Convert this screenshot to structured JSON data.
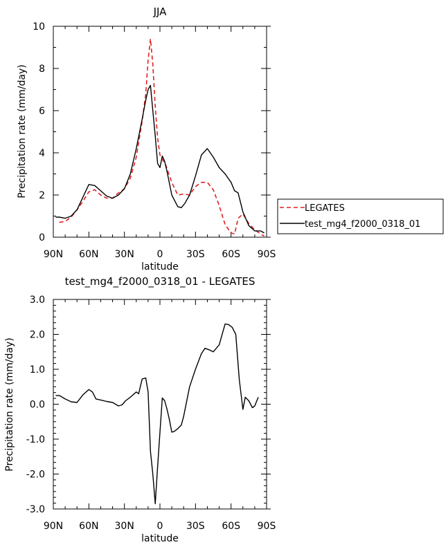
{
  "chart_data": [
    {
      "type": "line",
      "title": "JJA",
      "xlabel": "latitude",
      "ylabel": "Precipitation rate (mm/day)",
      "xlim": [
        90,
        -90
      ],
      "ylim": [
        0,
        10
      ],
      "xticks": [
        90,
        60,
        30,
        0,
        -30,
        -60,
        -90
      ],
      "xtick_labels": [
        "90N",
        "60N",
        "30N",
        "0",
        "30S",
        "60S",
        "90S"
      ],
      "yticks": [
        0,
        2,
        4,
        6,
        8,
        10
      ],
      "ytick_labels": [
        "0",
        "2",
        "4",
        "6",
        "8",
        "10"
      ],
      "legend": "outside-right",
      "series": [
        {
          "name": "LEGATES",
          "color": "#e02020",
          "dash": "dashed",
          "x": [
            85,
            80,
            75,
            70,
            65,
            60,
            55,
            50,
            45,
            40,
            35,
            30,
            25,
            20,
            15,
            12,
            10,
            8,
            6,
            4,
            2,
            0,
            -2,
            -5,
            -10,
            -15,
            -20,
            -25,
            -30,
            -35,
            -40,
            -45,
            -50,
            -55,
            -60,
            -63,
            -66,
            -70,
            -75,
            -80,
            -85,
            -88
          ],
          "y": [
            0.7,
            0.75,
            0.95,
            1.3,
            1.7,
            2.15,
            2.25,
            2.0,
            1.85,
            1.85,
            2.1,
            2.3,
            2.8,
            3.8,
            5.5,
            6.8,
            8.4,
            9.4,
            8.2,
            6.2,
            4.7,
            3.9,
            3.7,
            3.4,
            2.6,
            2.0,
            2.05,
            2.0,
            2.4,
            2.6,
            2.6,
            2.25,
            1.5,
            0.6,
            0.2,
            0.15,
            0.9,
            1.1,
            0.65,
            0.35,
            0.15,
            0.05
          ]
        },
        {
          "name": "test_mg4_f2000_0318_01",
          "color": "#000000",
          "dash": "solid",
          "x": [
            88,
            85,
            80,
            75,
            70,
            65,
            60,
            55,
            50,
            45,
            40,
            35,
            30,
            25,
            20,
            15,
            12,
            10,
            8,
            6,
            4,
            2,
            0,
            -2,
            -4,
            -6,
            -10,
            -15,
            -18,
            -21,
            -25,
            -30,
            -35,
            -40,
            -45,
            -50,
            -55,
            -60,
            -63,
            -66,
            -70,
            -75,
            -80,
            -85,
            -88
          ],
          "y": [
            0.95,
            0.95,
            0.9,
            1.0,
            1.3,
            1.9,
            2.5,
            2.45,
            2.2,
            1.95,
            1.85,
            2.0,
            2.3,
            3.0,
            4.2,
            5.6,
            6.5,
            7.0,
            7.2,
            6.0,
            4.8,
            3.5,
            3.3,
            3.85,
            3.6,
            3.1,
            2.0,
            1.45,
            1.4,
            1.6,
            2.0,
            2.9,
            3.9,
            4.2,
            3.8,
            3.3,
            3.0,
            2.6,
            2.2,
            2.1,
            1.2,
            0.55,
            0.3,
            0.3,
            0.2
          ]
        }
      ]
    },
    {
      "type": "line",
      "title": "test_mg4_f2000_0318_01 - LEGATES",
      "xlabel": "latitude",
      "ylabel": "Precipitation rate (mm/day)",
      "xlim": [
        90,
        -90
      ],
      "ylim": [
        -3,
        3
      ],
      "xticks": [
        90,
        60,
        30,
        0,
        -30,
        -60,
        -90
      ],
      "xtick_labels": [
        "90N",
        "60N",
        "30N",
        "0",
        "30S",
        "60S",
        "90S"
      ],
      "yticks": [
        -3,
        -2,
        -1,
        0,
        1,
        2,
        3
      ],
      "ytick_labels": [
        "-3.0",
        "-2.0",
        "-1.0",
        "0.0",
        "1.0",
        "2.0",
        "3.0"
      ],
      "series": [
        {
          "color": "#000000",
          "dash": "solid",
          "x": [
            88,
            85,
            80,
            75,
            70,
            65,
            60,
            57,
            54,
            50,
            45,
            40,
            35,
            32,
            29,
            25,
            20,
            18,
            15,
            12,
            10,
            8,
            6,
            4,
            2,
            0,
            -2,
            -4,
            -6,
            -8,
            -10,
            -12,
            -15,
            -18,
            -20,
            -25,
            -30,
            -35,
            -38,
            -42,
            -45,
            -50,
            -55,
            -58,
            -61,
            -64,
            -67,
            -70,
            -72,
            -75,
            -78,
            -80,
            -83
          ],
          "y": [
            0.25,
            0.25,
            0.15,
            0.07,
            0.05,
            0.27,
            0.42,
            0.35,
            0.15,
            0.12,
            0.08,
            0.05,
            -0.05,
            -0.02,
            0.1,
            0.2,
            0.35,
            0.3,
            0.72,
            0.75,
            0.35,
            -1.35,
            -2.0,
            -2.85,
            -1.8,
            -0.8,
            0.18,
            0.1,
            -0.15,
            -0.45,
            -0.8,
            -0.78,
            -0.7,
            -0.6,
            -0.35,
            0.5,
            1.0,
            1.45,
            1.6,
            1.55,
            1.5,
            1.7,
            2.3,
            2.28,
            2.2,
            2.0,
            0.7,
            -0.15,
            0.2,
            0.1,
            -0.1,
            -0.05,
            0.2
          ]
        }
      ]
    }
  ]
}
